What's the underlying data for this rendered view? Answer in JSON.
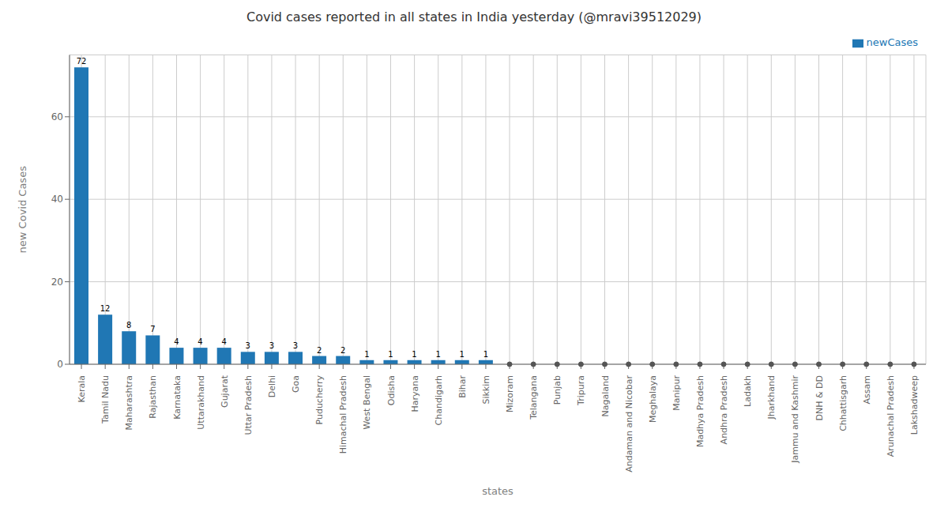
{
  "chart_data": {
    "type": "bar",
    "title": "Covid cases reported in all states in India yesterday (@mravi39512029)",
    "xlabel": "states",
    "ylabel": "new Covid Cases",
    "categories": [
      "Kerala",
      "Tamil Nadu",
      "Maharashtra",
      "Rajasthan",
      "Karnataka",
      "Uttarakhand",
      "Gujarat",
      "Uttar Pradesh",
      "Delhi",
      "Goa",
      "Puducherry",
      "Himachal Pradesh",
      "West Bengal",
      "Odisha",
      "Haryana",
      "Chandigarh",
      "Bihar",
      "Sikkim",
      "Mizoram",
      "Telangana",
      "Punjab",
      "Tripura",
      "Nagaland",
      "Andaman and Nicobar",
      "Meghalaya",
      "Manipur",
      "Madhya Pradesh",
      "Andhra Pradesh",
      "Ladakh",
      "Jharkhand",
      "Jammu and Kashmir",
      "DNH & DD",
      "Chhattisgarh",
      "Assam",
      "Arunachal Pradesh",
      "Lakshadweep"
    ],
    "series": [
      {
        "name": "newCases",
        "color": "#2077b4",
        "marker": "circle",
        "values": [
          72,
          12,
          8,
          7,
          4,
          4,
          4,
          3,
          3,
          3,
          2,
          2,
          1,
          1,
          1,
          1,
          1,
          1,
          0,
          0,
          0,
          0,
          0,
          0,
          0,
          0,
          0,
          0,
          0,
          0,
          0,
          0,
          0,
          0,
          0,
          0
        ],
        "value_labels": [
          "72",
          "12",
          "8",
          "7",
          "4",
          "4",
          "4",
          "3",
          "3",
          "3",
          "2",
          "2",
          "1",
          "1",
          "1",
          "1",
          "1",
          "1",
          null,
          null,
          null,
          null,
          null,
          null,
          null,
          null,
          null,
          null,
          null,
          null,
          null,
          null,
          null,
          null,
          null,
          null
        ]
      }
    ],
    "ylim": [
      0,
      75
    ],
    "yticks": [
      0,
      20,
      40,
      60
    ],
    "grid": true,
    "legend": "upper right"
  }
}
